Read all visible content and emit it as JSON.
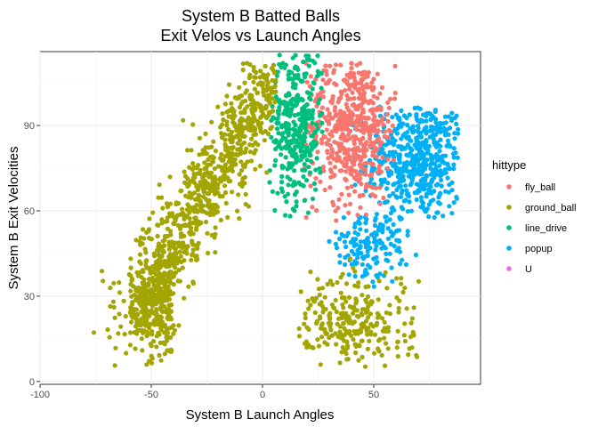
{
  "chart_data": {
    "type": "scatter",
    "title": [
      "System B Batted Balls",
      "Exit Velos vs Launch Angles"
    ],
    "xlabel": "System B Launch Angles",
    "ylabel": "System B Exit Velocities",
    "xlim": [
      -100,
      98
    ],
    "ylim": [
      -1,
      116
    ],
    "x_ticks": [
      -100,
      -50,
      0,
      50
    ],
    "y_ticks": [
      0,
      30,
      60,
      90
    ],
    "grid": true,
    "legend": {
      "title": "hittype",
      "placement": "right",
      "entries": [
        {
          "name": "fly_ball",
          "color": "#F8766D"
        },
        {
          "name": "ground_ball",
          "color": "#A3A500"
        },
        {
          "name": "line_drive",
          "color": "#00BF7D"
        },
        {
          "name": "popup",
          "color": "#00B0F6"
        },
        {
          "name": "U",
          "color": "#E76BF3"
        }
      ]
    },
    "series": [
      {
        "name": "popup",
        "color": "#00B0F6",
        "regions": [
          {
            "x_range": [
              40,
              88
            ],
            "y_range": [
              52,
              97
            ],
            "center": [
              70,
              78
            ]
          },
          {
            "x_range": [
              30,
              70
            ],
            "y_range": [
              30,
              58
            ],
            "center": [
              48,
              48
            ]
          }
        ]
      },
      {
        "name": "fly_ball",
        "color": "#F8766D",
        "regions": [
          {
            "x_range": [
              18,
              60
            ],
            "y_range": [
              55,
              112
            ],
            "center": [
              40,
              90
            ]
          }
        ]
      },
      {
        "name": "line_drive",
        "color": "#00BF7D",
        "regions": [
          {
            "x_range": [
              3,
              28
            ],
            "y_range": [
              58,
              115
            ],
            "center": [
              15,
              90
            ]
          }
        ]
      },
      {
        "name": "ground_ball",
        "color": "#A3A500",
        "regions": [
          {
            "x_range": [
              -60,
              6
            ],
            "y_range": [
              15,
              112
            ],
            "center": [
              -20,
              60
            ]
          },
          {
            "x_range": [
              -85,
              -40
            ],
            "y_range": [
              5,
              40
            ],
            "center": [
              -40,
              25
            ]
          },
          {
            "x_range": [
              15,
              75
            ],
            "y_range": [
              5,
              45
            ],
            "center": [
              40,
              20
            ]
          }
        ]
      },
      {
        "name": "U",
        "color": "#E76BF3",
        "regions": []
      }
    ]
  }
}
